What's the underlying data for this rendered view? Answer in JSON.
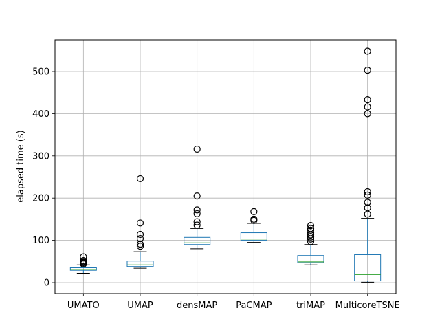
{
  "chart_data": {
    "type": "box",
    "title": "",
    "xlabel": "",
    "ylabel": "elapsed time (s)",
    "ylim": [
      -25,
      575
    ],
    "yticks": [
      0,
      100,
      200,
      300,
      400,
      500
    ],
    "grid": true,
    "legend": "none",
    "colors": {
      "box": "#1f77b4",
      "median": "#2ca02c",
      "whisker": "#000000",
      "grid": "#b0b0b0",
      "outlier": "#000000"
    },
    "categories": [
      "UMATO",
      "UMAP",
      "densMAP",
      "PaCMAP",
      "triMAP",
      "MulticoreTSNE"
    ],
    "boxes": [
      {
        "label": "UMATO",
        "whislo": 22,
        "q1": 29,
        "med": 31,
        "q3": 35,
        "whishi": 42,
        "fliers": [
          44,
          46,
          48,
          50,
          52,
          61
        ]
      },
      {
        "label": "UMAP",
        "whislo": 34,
        "q1": 38,
        "med": 42,
        "q3": 51,
        "whishi": 73,
        "fliers": [
          86,
          91,
          104,
          114,
          141,
          246
        ]
      },
      {
        "label": "densMAP",
        "whislo": 80,
        "q1": 90,
        "med": 94,
        "q3": 107,
        "whishi": 128,
        "fliers": [
          136,
          144,
          163,
          172,
          205,
          316
        ]
      },
      {
        "label": "PaCMAP",
        "whislo": 95,
        "q1": 100,
        "med": 103,
        "q3": 118,
        "whishi": 140,
        "fliers": [
          147,
          150,
          168
        ]
      },
      {
        "label": "triMAP",
        "whislo": 42,
        "q1": 47,
        "med": 49,
        "q3": 64,
        "whishi": 90,
        "fliers": [
          97,
          103,
          108,
          113,
          118,
          124,
          128,
          135
        ]
      },
      {
        "label": "MulticoreTSNE",
        "whislo": 1,
        "q1": 4,
        "med": 19,
        "q3": 66,
        "whishi": 152,
        "fliers": [
          162,
          177,
          190,
          207,
          215,
          400,
          416,
          433,
          503,
          548
        ]
      }
    ]
  }
}
